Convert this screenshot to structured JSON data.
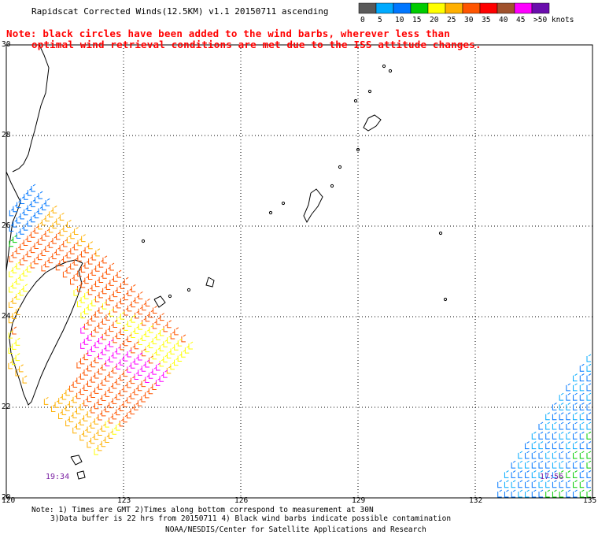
{
  "title": "Rapidscat Corrected Winds(12.5KM) v1.1 20150711 ascending",
  "note_line1": "Note: black circles have been added to the wind barbs, wherever less than",
  "note_line2": "optimal wind retrieval conditions are met due to the ISS attitude changes.",
  "legend": {
    "labels": [
      "0",
      "5",
      "10",
      "15",
      "20",
      "25",
      "30",
      "35",
      "40",
      "45",
      ">50 knots"
    ],
    "colors": [
      "#5a5a5a",
      "#00aaff",
      "#0077ff",
      "#00cc00",
      "#ffff00",
      "#ffb000",
      "#ff5500",
      "#ff0000",
      "#a0522d",
      "#ff00ff",
      "#6a0dad"
    ]
  },
  "lat_labels": [
    "30",
    "28",
    "26",
    "24",
    "22",
    "20"
  ],
  "lon_labels": [
    "120",
    "123",
    "126",
    "129",
    "132",
    "135"
  ],
  "time_labels": [
    "19:34",
    "17:56"
  ],
  "footer_line1": "Note: 1) Times are GMT 2)Times along bottom correspond to measurement at 30N",
  "footer_line2": "3)Data buffer is 22 hrs from 20150711 4) Black wind barbs indicate possible contamination",
  "footer_line3": "NOAA/NESDIS/Center for Satellite Applications and Research"
}
